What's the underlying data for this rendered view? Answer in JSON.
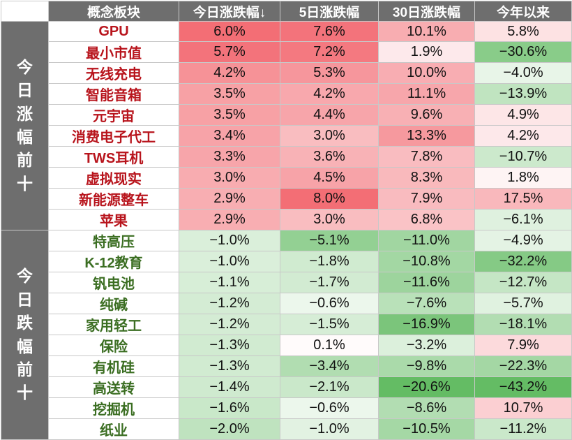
{
  "chart_data": {
    "type": "table",
    "headers": [
      "概念板块",
      "今日涨跌幅↓",
      "5日涨跌幅",
      "30日涨跌幅",
      "今年以来"
    ],
    "groups": [
      {
        "label": "今日涨幅前十",
        "kind": "up",
        "rows": [
          {
            "name": "GPU",
            "values": [
              6.0,
              7.6,
              10.1,
              5.8
            ]
          },
          {
            "name": "最小市值",
            "values": [
              5.7,
              7.2,
              1.9,
              -30.6
            ]
          },
          {
            "name": "无线充电",
            "values": [
              4.2,
              5.3,
              10.0,
              -4.0
            ]
          },
          {
            "name": "智能音箱",
            "values": [
              3.5,
              4.2,
              11.1,
              -13.9
            ]
          },
          {
            "name": "元宇宙",
            "values": [
              3.5,
              4.4,
              9.6,
              4.9
            ]
          },
          {
            "name": "消费电子代工",
            "values": [
              3.4,
              3.0,
              13.3,
              4.2
            ]
          },
          {
            "name": "TWS耳机",
            "values": [
              3.3,
              3.6,
              7.8,
              -10.7
            ]
          },
          {
            "name": "虚拟现实",
            "values": [
              3.0,
              4.5,
              8.3,
              1.8
            ]
          },
          {
            "name": "新能源整车",
            "values": [
              2.9,
              8.0,
              7.9,
              17.5
            ]
          },
          {
            "name": "苹果",
            "values": [
              2.9,
              3.0,
              6.8,
              -6.1
            ]
          }
        ]
      },
      {
        "label": "今日跌幅前十",
        "kind": "down",
        "rows": [
          {
            "name": "特高压",
            "values": [
              -1.0,
              -5.1,
              -11.0,
              -4.9
            ]
          },
          {
            "name": "K-12教育",
            "values": [
              -1.0,
              -1.8,
              -10.8,
              -32.2
            ]
          },
          {
            "name": "钒电池",
            "values": [
              -1.1,
              -1.7,
              -11.6,
              -12.7
            ]
          },
          {
            "name": "纯碱",
            "values": [
              -1.2,
              -0.6,
              -7.6,
              -5.7
            ]
          },
          {
            "name": "家用轻工",
            "values": [
              -1.2,
              -1.5,
              -16.9,
              -18.1
            ]
          },
          {
            "name": "保险",
            "values": [
              -1.3,
              0.1,
              -3.2,
              7.9
            ]
          },
          {
            "name": "有机硅",
            "values": [
              -1.3,
              -3.4,
              -9.8,
              -22.3
            ]
          },
          {
            "name": "高送转",
            "values": [
              -1.4,
              -2.1,
              -20.6,
              -43.2
            ]
          },
          {
            "name": "挖掘机",
            "values": [
              -1.6,
              -0.6,
              -8.6,
              10.7
            ]
          },
          {
            "name": "纸业",
            "values": [
              -2.0,
              -1.0,
              -10.5,
              -11.2
            ]
          }
        ]
      }
    ],
    "colors": {
      "header_bg": "#6e6e6e",
      "positive": "#f2666e",
      "negative": "#5cb85c",
      "up_name": "#b8141c",
      "down_name": "#3b6e22"
    }
  }
}
